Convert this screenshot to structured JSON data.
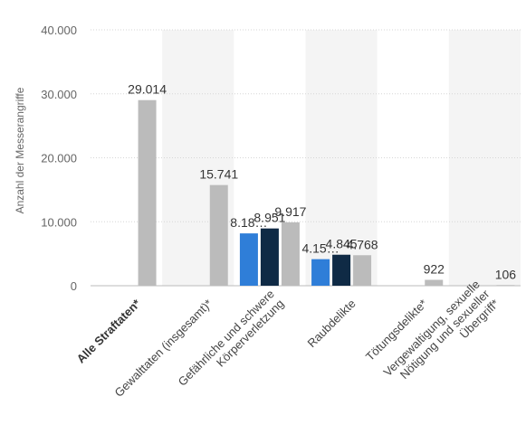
{
  "chart_data": {
    "type": "bar",
    "ylabel": "Anzahl der Messerangriffe",
    "ylim": [
      0,
      40000
    ],
    "y_ticks": [
      0,
      10000,
      20000,
      30000,
      40000
    ],
    "y_tick_labels": [
      "0",
      "10.000",
      "20.000",
      "30.000",
      "40.000"
    ],
    "grid": true,
    "categories": [
      {
        "label": "Alle Straftaten",
        "suffix": "*",
        "bold": true
      },
      {
        "label": "Gewalttaten (insgesamt)",
        "suffix": "*",
        "bold": false
      },
      {
        "label": "Gefährliche und schwere Körperverletzung",
        "suffix": "",
        "bold": false
      },
      {
        "label": "Raubdelikte",
        "suffix": "",
        "bold": false
      },
      {
        "label": "Tötungsdelikte",
        "suffix": "*",
        "bold": false
      },
      {
        "label": "Vergewaltigung, sexuelle Nötigung und sexueller Übergriff",
        "suffix": "*",
        "bold": false
      }
    ],
    "series": [
      {
        "color": "#2f7ed8",
        "values": [
          null,
          null,
          8180,
          4150,
          null,
          null
        ],
        "value_labels": [
          null,
          null,
          "8.18…",
          "4.15…",
          null,
          null
        ]
      },
      {
        "color": "#0f2a45",
        "values": [
          null,
          null,
          8951,
          4845,
          null,
          null
        ],
        "value_labels": [
          null,
          null,
          "8.951",
          "4.845",
          null,
          null
        ]
      },
      {
        "color": "#bbbbbb",
        "values": [
          29014,
          15741,
          9917,
          4768,
          922,
          106
        ],
        "value_labels": [
          "29.014",
          "15.741",
          "9.917",
          "4.768",
          "922",
          "106"
        ]
      }
    ],
    "colors": {
      "band": "#f4f4f4",
      "grid": "#d6d6d6",
      "axis": "#bbbbbb"
    }
  }
}
